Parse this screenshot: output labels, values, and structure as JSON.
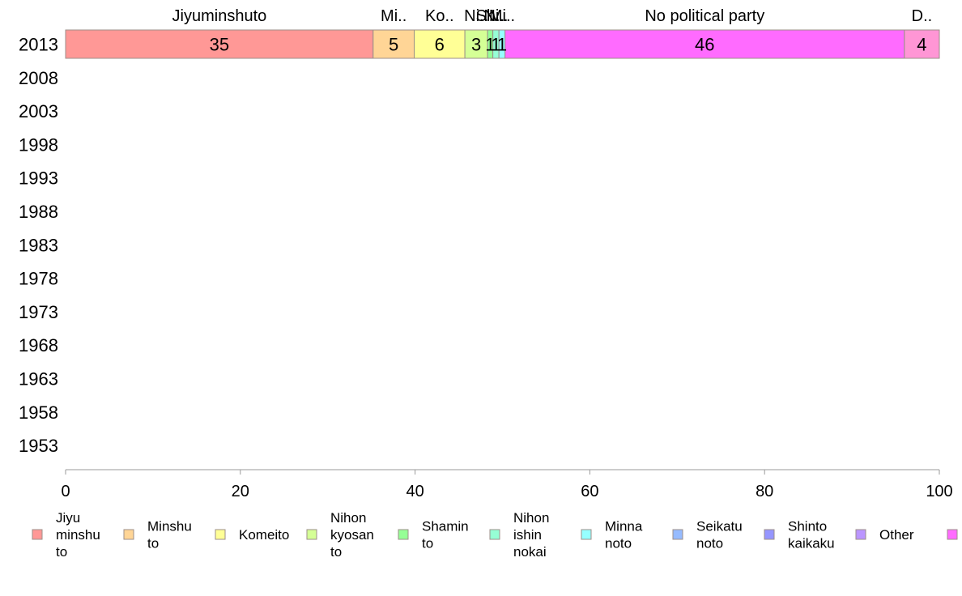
{
  "chart_data": {
    "type": "bar",
    "orientation": "horizontal",
    "stacked": true,
    "categories": [
      "2013",
      "2008",
      "2003",
      "1998",
      "1993",
      "1988",
      "1983",
      "1978",
      "1973",
      "1968",
      "1963",
      "1958",
      "1953"
    ],
    "xlim": [
      0,
      100
    ],
    "xticks": [
      "0",
      "20",
      "40",
      "60",
      "80",
      "100"
    ],
    "grid": false,
    "legend_position": "bottom",
    "series": [
      {
        "name": "Jiyu minshu to",
        "color": "#ff9896",
        "values": [
          35.2,
          null,
          null,
          null,
          null,
          null,
          null,
          null,
          null,
          null,
          null,
          null,
          null
        ],
        "data_label": "35",
        "top_label": "Jiyuminshuto"
      },
      {
        "name": "Minshu to",
        "color": "#ffd596",
        "values": [
          4.7,
          null,
          null,
          null,
          null,
          null,
          null,
          null,
          null,
          null,
          null,
          null,
          null
        ],
        "data_label": "5",
        "top_label": "Mi.."
      },
      {
        "name": "Komeito",
        "color": "#ffff96",
        "values": [
          5.8,
          null,
          null,
          null,
          null,
          null,
          null,
          null,
          null,
          null,
          null,
          null,
          null
        ],
        "data_label": "6",
        "top_label": "Ko.."
      },
      {
        "name": "Nihon kyosan to",
        "color": "#d5ff96",
        "values": [
          2.6,
          null,
          null,
          null,
          null,
          null,
          null,
          null,
          null,
          null,
          null,
          null,
          null
        ],
        "data_label": "3",
        "top_label": "Ni.."
      },
      {
        "name": "Shamin to",
        "color": "#96ff96",
        "values": [
          0.6,
          null,
          null,
          null,
          null,
          null,
          null,
          null,
          null,
          null,
          null,
          null,
          null
        ],
        "data_label": "1",
        "top_label": "Sh.."
      },
      {
        "name": "Nihon ishin nokai",
        "color": "#96ffd5",
        "values": [
          0.7,
          null,
          null,
          null,
          null,
          null,
          null,
          null,
          null,
          null,
          null,
          null,
          null
        ],
        "data_label": "1",
        "top_label": "Ni.."
      },
      {
        "name": "Minna noto",
        "color": "#96ffff",
        "values": [
          0.7,
          null,
          null,
          null,
          null,
          null,
          null,
          null,
          null,
          null,
          null,
          null,
          null
        ],
        "data_label": "1",
        "top_label": "Mi.."
      },
      {
        "name": "Seikatu noto",
        "color": "#96bbff",
        "values": [
          0.0,
          null,
          null,
          null,
          null,
          null,
          null,
          null,
          null,
          null,
          null,
          null,
          null
        ],
        "data_label": "",
        "top_label": ""
      },
      {
        "name": "Shinto kaikaku",
        "color": "#9696ff",
        "values": [
          0.0,
          null,
          null,
          null,
          null,
          null,
          null,
          null,
          null,
          null,
          null,
          null,
          null
        ],
        "data_label": "",
        "top_label": ""
      },
      {
        "name": "Other",
        "color": "#bb96ff",
        "values": [
          0.0,
          null,
          null,
          null,
          null,
          null,
          null,
          null,
          null,
          null,
          null,
          null,
          null
        ],
        "data_label": "",
        "top_label": ""
      },
      {
        "name": "No political party",
        "color": "#ff6bff",
        "values": [
          45.7,
          null,
          null,
          null,
          null,
          null,
          null,
          null,
          null,
          null,
          null,
          null,
          null
        ],
        "data_label": "46",
        "top_label": "No political party"
      },
      {
        "name": "",
        "color": "#ff96d5",
        "values": [
          4.0,
          null,
          null,
          null,
          null,
          null,
          null,
          null,
          null,
          null,
          null,
          null,
          null
        ],
        "data_label": "4",
        "top_label": "D.."
      }
    ]
  }
}
